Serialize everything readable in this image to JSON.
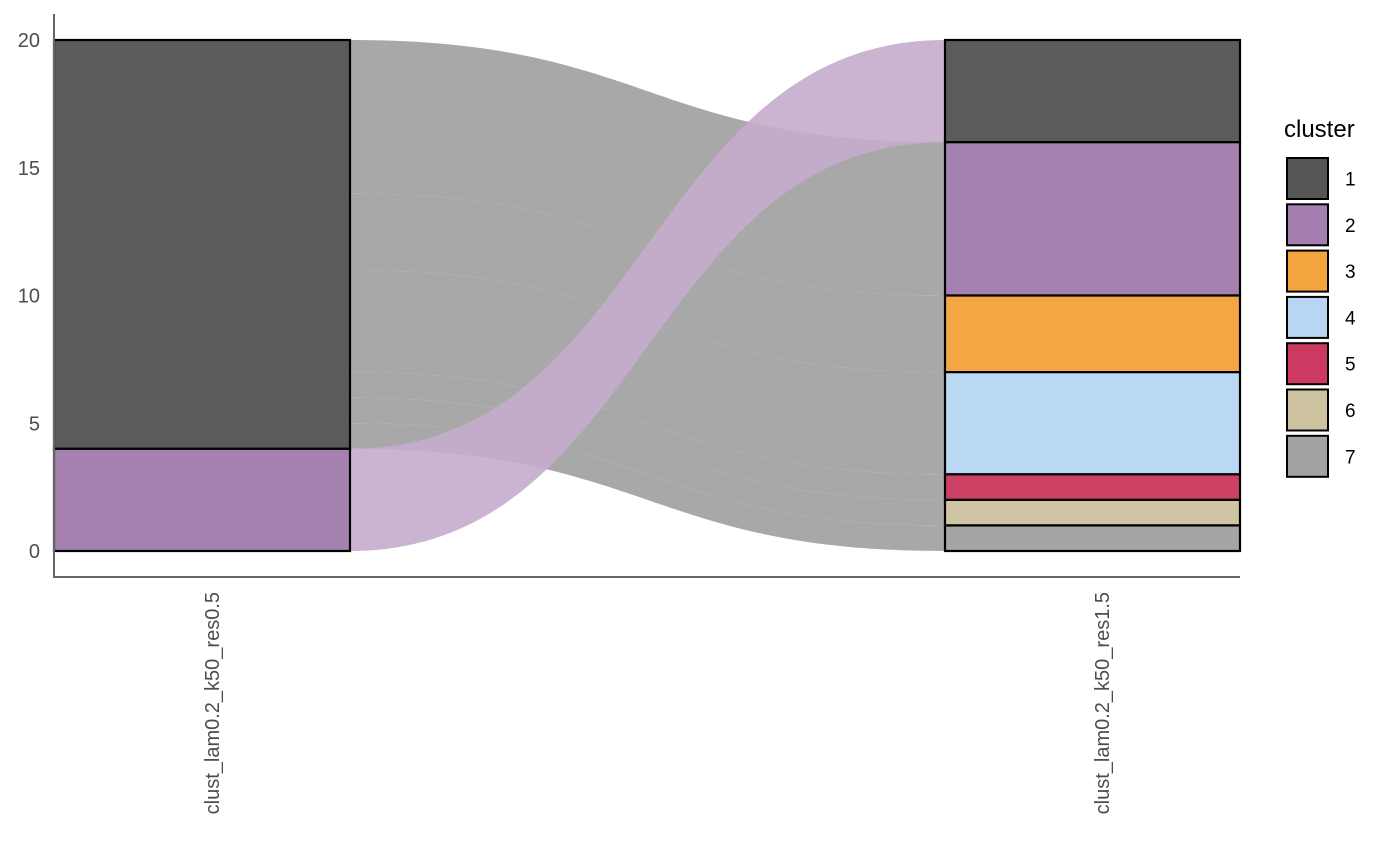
{
  "chart_data": {
    "type": "alluvial",
    "title": "",
    "xlabel": "",
    "ylabel": "",
    "ylim": [
      0,
      20
    ],
    "yticks": [
      0,
      5,
      10,
      15,
      20
    ],
    "grid": false,
    "legend_position": "right",
    "axes": [
      "clust_lam0.2_k50_res0.5",
      "clust_lam0.2_k50_res1.5"
    ],
    "legend": {
      "title": "cluster",
      "entries": [
        {
          "label": "1",
          "color": "#444444"
        },
        {
          "label": "2",
          "color": "#9970A5"
        },
        {
          "label": "3",
          "color": "#F39A2A"
        },
        {
          "label": "4",
          "color": "#B0D2F2"
        },
        {
          "label": "5",
          "color": "#C82550"
        },
        {
          "label": "6",
          "color": "#C9BD96"
        },
        {
          "label": "7",
          "color": "#999999"
        }
      ]
    },
    "strata": [
      [
        {
          "cluster": "1",
          "value": 16
        },
        {
          "cluster": "2",
          "value": 4
        }
      ],
      [
        {
          "cluster": "1",
          "value": 4
        },
        {
          "cluster": "2",
          "value": 6
        },
        {
          "cluster": "3",
          "value": 3
        },
        {
          "cluster": "4",
          "value": 4
        },
        {
          "cluster": "5",
          "value": 1
        },
        {
          "cluster": "6",
          "value": 1
        },
        {
          "cluster": "7",
          "value": 1
        }
      ]
    ],
    "flows": [
      {
        "from": "1",
        "to": "2",
        "value": 6,
        "color": "#9e9e9e"
      },
      {
        "from": "1",
        "to": "3",
        "value": 3,
        "color": "#9e9e9e"
      },
      {
        "from": "1",
        "to": "4",
        "value": 4,
        "color": "#9e9e9e"
      },
      {
        "from": "1",
        "to": "5",
        "value": 1,
        "color": "#9e9e9e"
      },
      {
        "from": "1",
        "to": "6",
        "value": 1,
        "color": "#9e9e9e"
      },
      {
        "from": "1",
        "to": "7",
        "value": 1,
        "color": "#9e9e9e"
      },
      {
        "from": "2",
        "to": "1",
        "value": 4,
        "color": "#c5abcd"
      }
    ]
  }
}
